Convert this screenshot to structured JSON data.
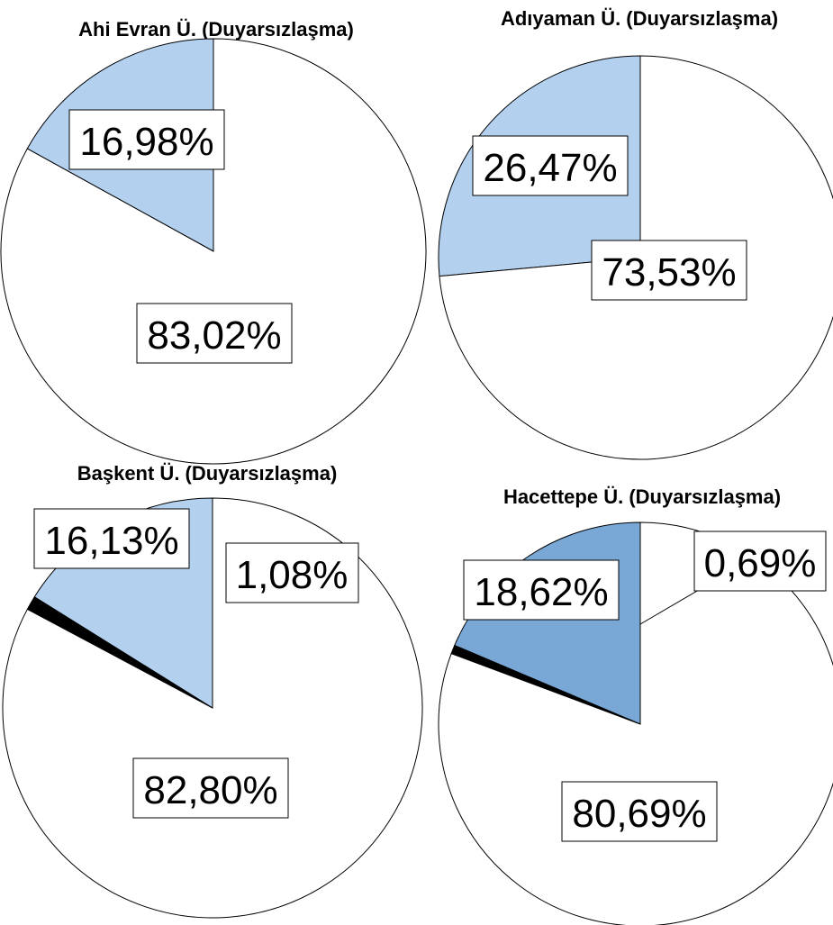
{
  "chart_data": [
    {
      "type": "pie",
      "title": "Ahi Evran Ü. (Duyarsızlaşma)",
      "slices": [
        {
          "value": 16.98,
          "label": "16,98%",
          "color": "#b3d1ee"
        },
        {
          "value": 83.02,
          "label": "83,02%",
          "color": "#ffffff"
        }
      ]
    },
    {
      "type": "pie",
      "title": "Adıyaman Ü. (Duyarsızlaşma)",
      "slices": [
        {
          "value": 26.47,
          "label": "26,47%",
          "color": "#b3d1ee"
        },
        {
          "value": 73.53,
          "label": "73,53%",
          "color": "#ffffff"
        }
      ]
    },
    {
      "type": "pie",
      "title": "Başkent Ü. (Duyarsızlaşma)",
      "slices": [
        {
          "value": 16.13,
          "label": "16,13%",
          "color": "#b3d1ee"
        },
        {
          "value": 1.08,
          "label": "1,08%",
          "color": "#000000"
        },
        {
          "value": 82.8,
          "label": "82,80%",
          "color": "#ffffff"
        }
      ]
    },
    {
      "type": "pie",
      "title": "Hacettepe Ü. (Duyarsızlaşma)",
      "slices": [
        {
          "value": 18.62,
          "label": "18,62%",
          "color": "#7aa8d6"
        },
        {
          "value": 0.69,
          "label": "0,69%",
          "color": "#000000"
        },
        {
          "value": 80.69,
          "label": "80,69%",
          "color": "#ffffff"
        }
      ]
    }
  ]
}
